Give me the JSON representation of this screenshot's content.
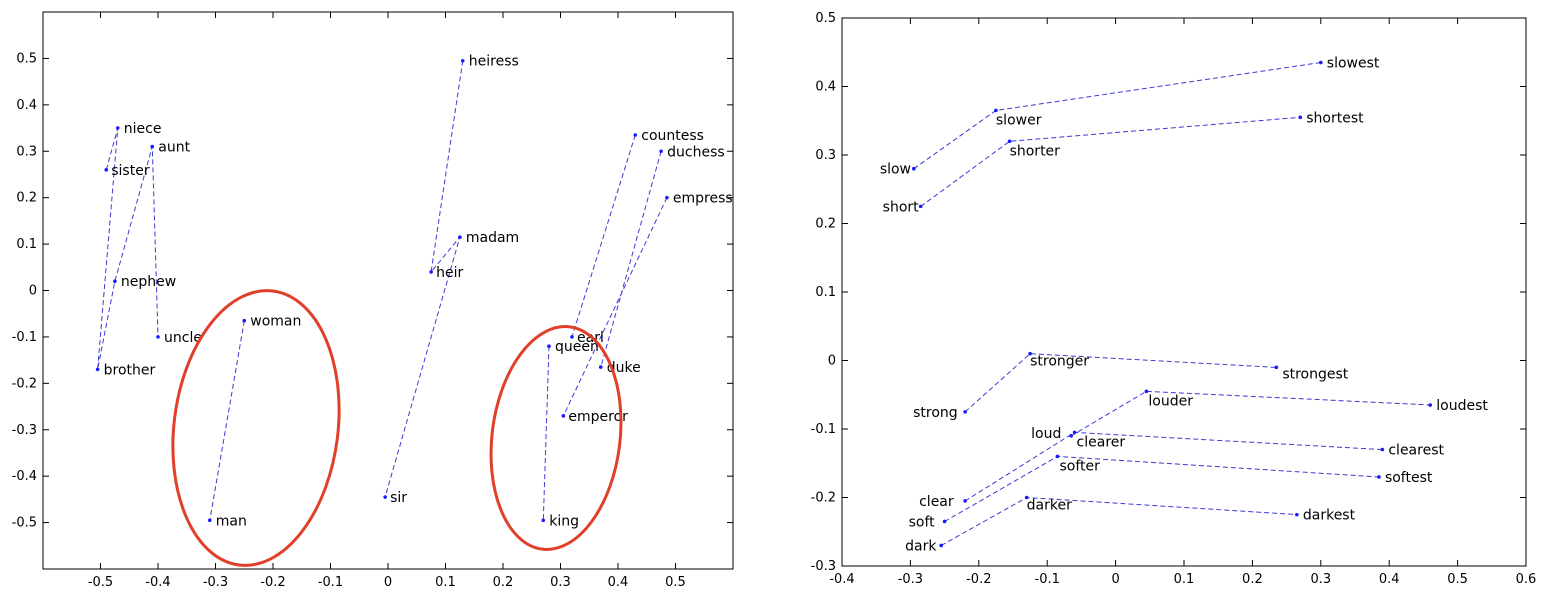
{
  "chart_data": [
    {
      "type": "scatter",
      "title": "",
      "xlabel": "",
      "ylabel": "",
      "xlim": [
        -0.6,
        0.6
      ],
      "ylim": [
        -0.6,
        0.6
      ],
      "xticks": [
        -0.5,
        -0.4,
        -0.3,
        -0.2,
        -0.1,
        0,
        0.1,
        0.2,
        0.3,
        0.4,
        0.5
      ],
      "yticks": [
        -0.5,
        -0.4,
        -0.3,
        -0.2,
        -0.1,
        0,
        0.1,
        0.2,
        0.3,
        0.4,
        0.5
      ],
      "points": [
        {
          "label": "niece",
          "x": -0.47,
          "y": 0.35
        },
        {
          "label": "aunt",
          "x": -0.41,
          "y": 0.31
        },
        {
          "label": "sister",
          "x": -0.49,
          "y": 0.26
        },
        {
          "label": "nephew",
          "x": -0.475,
          "y": 0.02
        },
        {
          "label": "uncle",
          "x": -0.4,
          "y": -0.1
        },
        {
          "label": "brother",
          "x": -0.505,
          "y": -0.17
        },
        {
          "label": "woman",
          "x": -0.25,
          "y": -0.065
        },
        {
          "label": "man",
          "x": -0.31,
          "y": -0.495
        },
        {
          "label": "heiress",
          "x": 0.13,
          "y": 0.495
        },
        {
          "label": "madam",
          "x": 0.125,
          "y": 0.115
        },
        {
          "label": "heir",
          "x": 0.075,
          "y": 0.04
        },
        {
          "label": "sir",
          "x": -0.005,
          "y": -0.445
        },
        {
          "label": "countess",
          "x": 0.43,
          "y": 0.335
        },
        {
          "label": "duchess",
          "x": 0.475,
          "y": 0.3
        },
        {
          "label": "empress",
          "x": 0.485,
          "y": 0.2
        },
        {
          "label": "earl",
          "x": 0.32,
          "y": -0.1
        },
        {
          "label": "queen",
          "x": 0.28,
          "y": -0.12
        },
        {
          "label": "duke",
          "x": 0.37,
          "y": -0.165
        },
        {
          "label": "emperor",
          "x": 0.305,
          "y": -0.27
        },
        {
          "label": "king",
          "x": 0.27,
          "y": -0.495
        }
      ],
      "lines": [
        [
          "sister",
          "niece",
          "brother",
          "nephew",
          "aunt",
          "uncle"
        ],
        [
          "woman",
          "man"
        ],
        [
          "heiress",
          "heir",
          "madam",
          "sir"
        ],
        [
          "countess",
          "earl"
        ],
        [
          "duchess",
          "duke"
        ],
        [
          "empress",
          "emperor"
        ],
        [
          "queen",
          "king"
        ]
      ],
      "circles": [
        "man-woman",
        "king-queen"
      ],
      "colors": {
        "points": "#1a1aff",
        "lines": "#3b3bd6",
        "circle": "#e0402a"
      }
    },
    {
      "type": "scatter",
      "title": "",
      "xlabel": "",
      "ylabel": "",
      "xlim": [
        -0.4,
        0.6
      ],
      "ylim": [
        -0.3,
        0.5
      ],
      "xticks": [
        -0.4,
        -0.3,
        -0.2,
        -0.1,
        0,
        0.1,
        0.2,
        0.3,
        0.4,
        0.5,
        0.6
      ],
      "yticks": [
        -0.3,
        -0.2,
        -0.1,
        0,
        0.1,
        0.2,
        0.3,
        0.4,
        0.5
      ],
      "points": [
        {
          "label": "slow",
          "x": -0.295,
          "y": 0.28
        },
        {
          "label": "slower",
          "x": -0.175,
          "y": 0.365
        },
        {
          "label": "slowest",
          "x": 0.3,
          "y": 0.435
        },
        {
          "label": "short",
          "x": -0.285,
          "y": 0.225
        },
        {
          "label": "shorter",
          "x": -0.155,
          "y": 0.32
        },
        {
          "label": "shortest",
          "x": 0.27,
          "y": 0.355
        },
        {
          "label": "strong",
          "x": -0.22,
          "y": -0.075
        },
        {
          "label": "stronger",
          "x": -0.125,
          "y": 0.01
        },
        {
          "label": "strongest",
          "x": 0.235,
          "y": -0.01
        },
        {
          "label": "loud",
          "x": -0.065,
          "y": -0.11
        },
        {
          "label": "louder",
          "x": 0.045,
          "y": -0.045
        },
        {
          "label": "loudest",
          "x": 0.46,
          "y": -0.065
        },
        {
          "label": "clear",
          "x": -0.22,
          "y": -0.205
        },
        {
          "label": "clearer",
          "x": -0.06,
          "y": -0.105
        },
        {
          "label": "clearest",
          "x": 0.39,
          "y": -0.13
        },
        {
          "label": "soft",
          "x": -0.25,
          "y": -0.235
        },
        {
          "label": "softer",
          "x": -0.085,
          "y": -0.14
        },
        {
          "label": "softest",
          "x": 0.385,
          "y": -0.17
        },
        {
          "label": "dark",
          "x": -0.255,
          "y": -0.27
        },
        {
          "label": "darker",
          "x": -0.13,
          "y": -0.2
        },
        {
          "label": "darkest",
          "x": 0.265,
          "y": -0.225
        }
      ],
      "lines": [
        [
          "slow",
          "slower",
          "slowest"
        ],
        [
          "short",
          "shorter",
          "shortest"
        ],
        [
          "strong",
          "stronger",
          "strongest"
        ],
        [
          "loud",
          "louder",
          "loudest"
        ],
        [
          "clear",
          "clearer",
          "clearest"
        ],
        [
          "soft",
          "softer",
          "softest"
        ],
        [
          "dark",
          "darker",
          "darkest"
        ]
      ],
      "colors": {
        "points": "#1a1aff",
        "lines": "#3b3bd6"
      }
    }
  ]
}
